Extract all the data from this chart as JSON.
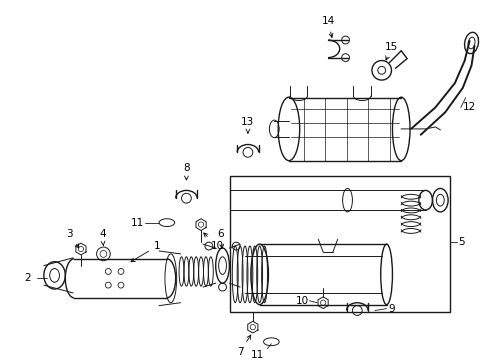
{
  "background_color": "#ffffff",
  "line_color": "#1a1a1a",
  "fig_width": 4.9,
  "fig_height": 3.6,
  "dpi": 100,
  "label_fontsize": 7.5
}
